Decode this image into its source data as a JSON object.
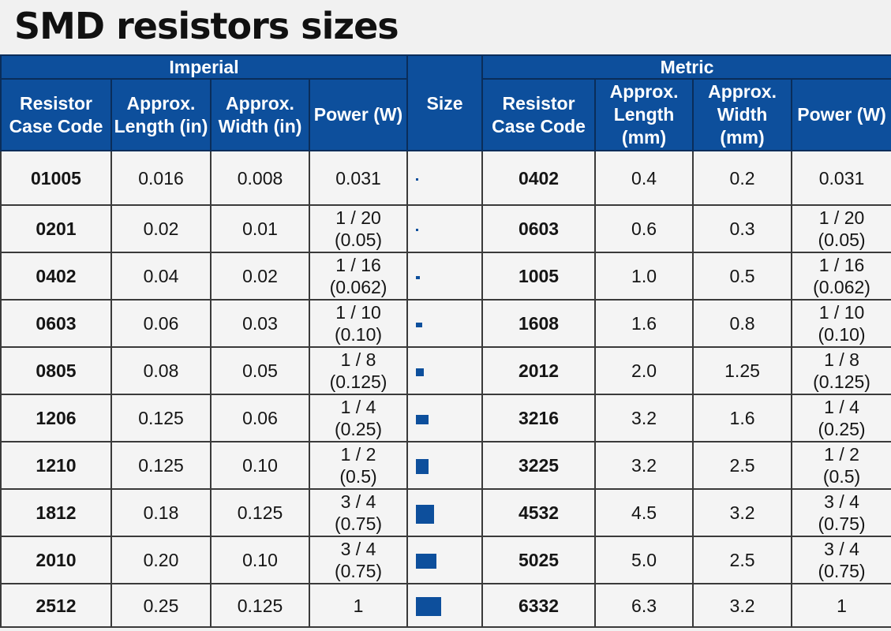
{
  "title": "SMD resistors sizes",
  "header": {
    "imperial": "Imperial",
    "metric": "Metric",
    "size": "Size",
    "imperial_columns": [
      "Resistor Case Code",
      "Approx. Length (in)",
      "Approx. Width (in)",
      "Power (W)"
    ],
    "metric_columns": [
      "Resistor Case Code",
      "Approx. Length (mm)",
      "Approx. Width (mm)",
      "Power (W)"
    ]
  },
  "colors": {
    "header_bg": "#0d4f9c",
    "chip": "#0d4f9c"
  },
  "rows": [
    {
      "imp_code": "01005",
      "imp_len": "0.016",
      "imp_wid": "0.008",
      "imp_power": [
        "0.031"
      ],
      "met_code": "0402",
      "met_len": "0.4",
      "met_wid": "0.2",
      "met_power": [
        "0.031"
      ],
      "chip_length_mm": 0.4,
      "chip_width_mm": 0.2
    },
    {
      "imp_code": "0201",
      "imp_len": "0.02",
      "imp_wid": "0.01",
      "imp_power": [
        "1 / 20",
        "(0.05)"
      ],
      "met_code": "0603",
      "met_len": "0.6",
      "met_wid": "0.3",
      "met_power": [
        "1 / 20",
        "(0.05)"
      ],
      "chip_length_mm": 0.6,
      "chip_width_mm": 0.3
    },
    {
      "imp_code": "0402",
      "imp_len": "0.04",
      "imp_wid": "0.02",
      "imp_power": [
        "1 / 16",
        "(0.062)"
      ],
      "met_code": "1005",
      "met_len": "1.0",
      "met_wid": "0.5",
      "met_power": [
        "1 / 16",
        "(0.062)"
      ],
      "chip_length_mm": 1.0,
      "chip_width_mm": 0.5
    },
    {
      "imp_code": "0603",
      "imp_len": "0.06",
      "imp_wid": "0.03",
      "imp_power": [
        "1 / 10",
        "(0.10)"
      ],
      "met_code": "1608",
      "met_len": "1.6",
      "met_wid": "0.8",
      "met_power": [
        "1 / 10",
        "(0.10)"
      ],
      "chip_length_mm": 1.6,
      "chip_width_mm": 0.8
    },
    {
      "imp_code": "0805",
      "imp_len": "0.08",
      "imp_wid": "0.05",
      "imp_power": [
        "1 / 8",
        "(0.125)"
      ],
      "met_code": "2012",
      "met_len": "2.0",
      "met_wid": "1.25",
      "met_power": [
        "1 / 8",
        "(0.125)"
      ],
      "chip_length_mm": 2.0,
      "chip_width_mm": 1.25
    },
    {
      "imp_code": "1206",
      "imp_len": "0.125",
      "imp_wid": "0.06",
      "imp_power": [
        "1 / 4",
        "(0.25)"
      ],
      "met_code": "3216",
      "met_len": "3.2",
      "met_wid": "1.6",
      "met_power": [
        "1 / 4",
        "(0.25)"
      ],
      "chip_length_mm": 3.2,
      "chip_width_mm": 1.6
    },
    {
      "imp_code": "1210",
      "imp_len": "0.125",
      "imp_wid": "0.10",
      "imp_power": [
        "1 / 2",
        "(0.5)"
      ],
      "met_code": "3225",
      "met_len": "3.2",
      "met_wid": "2.5",
      "met_power": [
        "1 / 2",
        "(0.5)"
      ],
      "chip_length_mm": 3.2,
      "chip_width_mm": 2.5
    },
    {
      "imp_code": "1812",
      "imp_len": "0.18",
      "imp_wid": "0.125",
      "imp_power": [
        "3 / 4",
        "(0.75)"
      ],
      "met_code": "4532",
      "met_len": "4.5",
      "met_wid": "3.2",
      "met_power": [
        "3 / 4",
        "(0.75)"
      ],
      "chip_length_mm": 4.5,
      "chip_width_mm": 3.2
    },
    {
      "imp_code": "2010",
      "imp_len": "0.20",
      "imp_wid": "0.10",
      "imp_power": [
        "3 / 4",
        "(0.75)"
      ],
      "met_code": "5025",
      "met_len": "5.0",
      "met_wid": "2.5",
      "met_power": [
        "3 / 4",
        "(0.75)"
      ],
      "chip_length_mm": 5.0,
      "chip_width_mm": 2.5
    },
    {
      "imp_code": "2512",
      "imp_len": "0.25",
      "imp_wid": "0.125",
      "imp_power": [
        "1"
      ],
      "met_code": "6332",
      "met_len": "6.3",
      "met_wid": "3.2",
      "met_power": [
        "1"
      ],
      "chip_length_mm": 6.3,
      "chip_width_mm": 3.2
    }
  ]
}
